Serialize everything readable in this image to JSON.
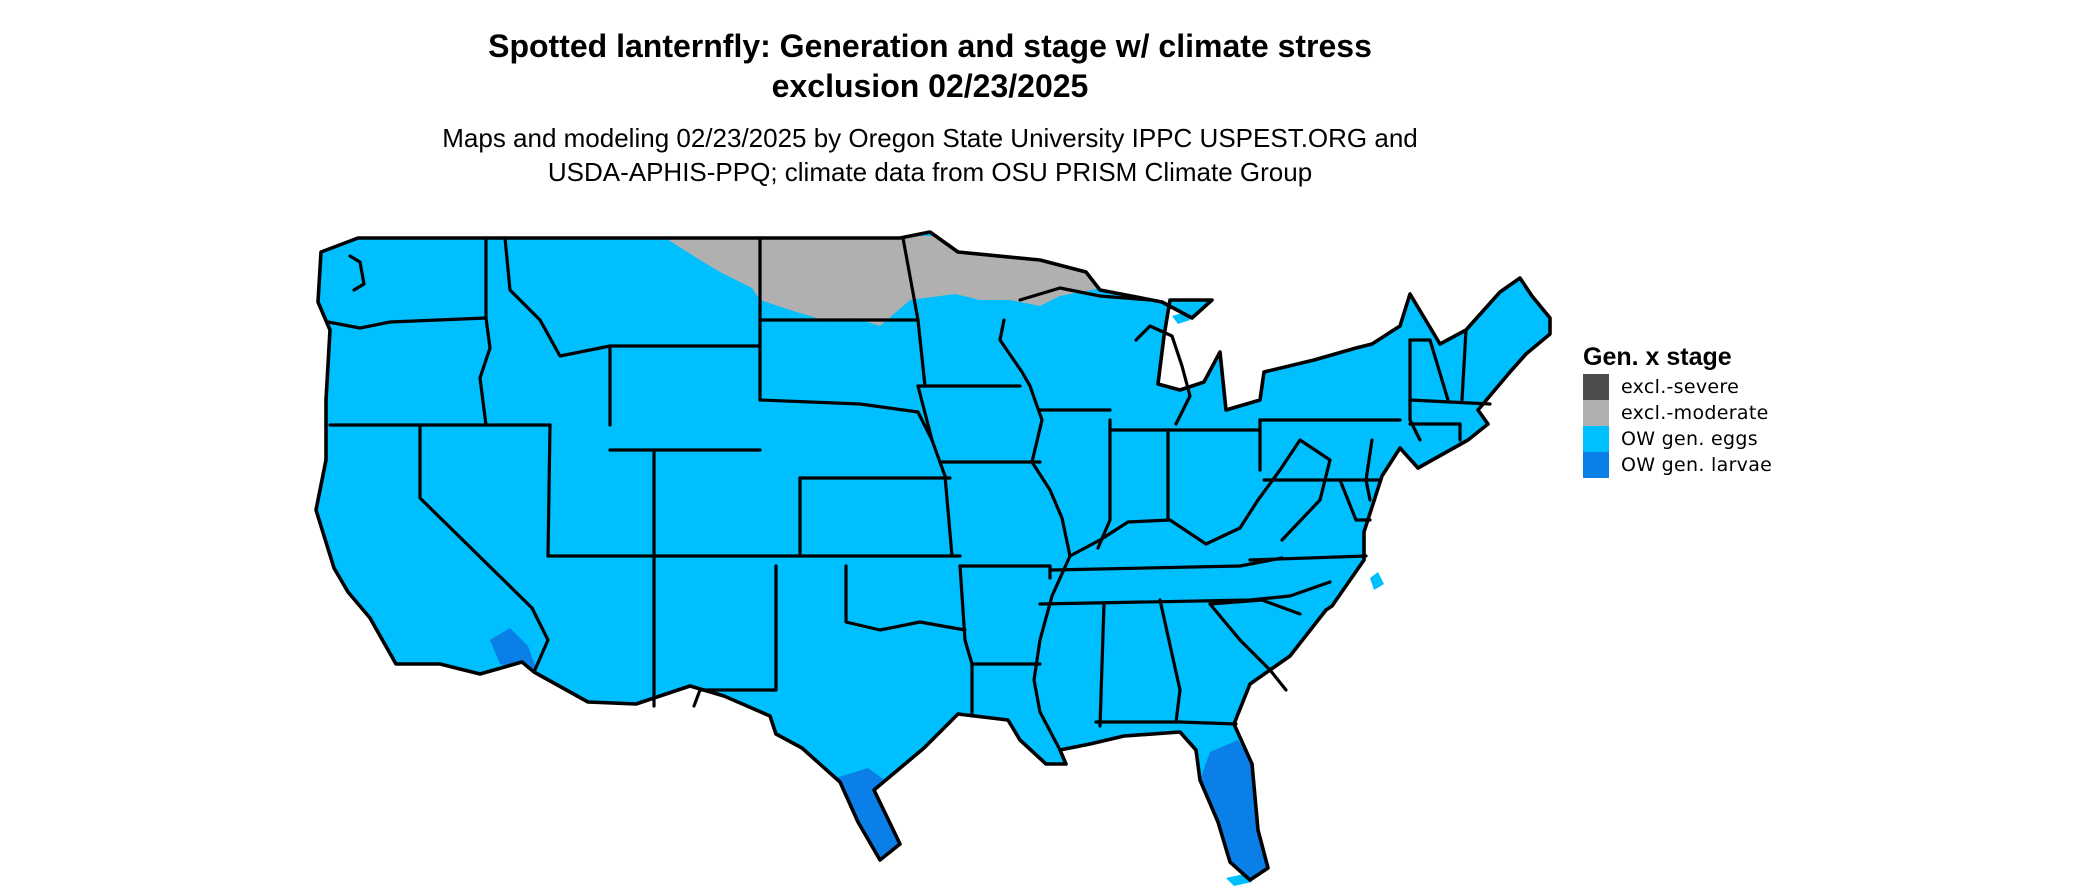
{
  "title": {
    "line1": "Spotted lanternfly: Generation and stage w/ climate stress",
    "line2": "exclusion 02/23/2025"
  },
  "subtitle": {
    "line1": "Maps and modeling 02/23/2025 by Oregon State University IPPC USPEST.ORG and",
    "line2": "USDA-APHIS-PPQ; climate data from OSU PRISM Climate Group"
  },
  "legend": {
    "title": "Gen. x stage",
    "items": [
      {
        "label": "excl.-severe",
        "color": "#4d4d4d"
      },
      {
        "label": "excl.-moderate",
        "color": "#b0b0b0"
      },
      {
        "label": "OW gen. eggs",
        "color": "#00bfff"
      },
      {
        "label": "OW gen. larvae",
        "color": "#0a7fe8"
      }
    ]
  },
  "map": {
    "region": "contiguous-united-states",
    "base_category": "OW gen. eggs",
    "area_categories": [
      {
        "area": "northern North Dakota and northern Minnesota",
        "category": "excl.-moderate"
      },
      {
        "area": "southern Florida",
        "category": "OW gen. larvae"
      },
      {
        "area": "southern Texas",
        "category": "OW gen. larvae"
      },
      {
        "area": "southeastern California desert",
        "category": "OW gen. larvae"
      }
    ],
    "colors": {
      "border": "#000000",
      "background": "#ffffff"
    }
  }
}
